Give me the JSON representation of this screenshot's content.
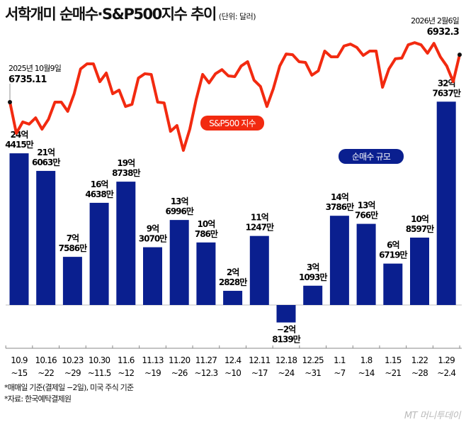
{
  "title": "서학개미 순매수·S&P500지수 추이",
  "unit": "(단위: 달러)",
  "chart_data": [
    {
      "type": "bar",
      "title": "",
      "legend_label": "순매수 규모",
      "color": "#0a1f8f",
      "categories": [
        [
          "10.9",
          "~15"
        ],
        [
          "10.16",
          "~22"
        ],
        [
          "10.23",
          "~29"
        ],
        [
          "10.30",
          "~11.5"
        ],
        [
          "11.6",
          "~12"
        ],
        [
          "11.13",
          "~19"
        ],
        [
          "11.20",
          "~26"
        ],
        [
          "11.27",
          "~12.3"
        ],
        [
          "12.4",
          "~10"
        ],
        [
          "12.11",
          "~17"
        ],
        [
          "12.18",
          "~24"
        ],
        [
          "12.25",
          "~31"
        ],
        [
          "1.1",
          "~7"
        ],
        [
          "1.8",
          "~14"
        ],
        [
          "1.15",
          "~21"
        ],
        [
          "1.22",
          "~28"
        ],
        [
          "1.29",
          "~2.4"
        ]
      ],
      "values_eok": [
        24.4415,
        21.6063,
        7.7586,
        16.4638,
        19.8738,
        9.307,
        13.6996,
        10.0786,
        2.2828,
        11.1247,
        -2.8139,
        3.1093,
        14.3786,
        13.0766,
        6.6719,
        10.8597,
        32.7637
      ],
      "data_labels": [
        [
          "24억",
          "4415만"
        ],
        [
          "21억",
          "6063만"
        ],
        [
          "7억",
          "7586만"
        ],
        [
          "16억",
          "4638만"
        ],
        [
          "19억",
          "8738만"
        ],
        [
          "9억",
          "3070만"
        ],
        [
          "13억",
          "6996만"
        ],
        [
          "10억",
          "786만"
        ],
        [
          "2억",
          "2828만"
        ],
        [
          "11억",
          "1247만"
        ],
        [
          "−2억",
          "8139만"
        ],
        [
          "3억",
          "1093만"
        ],
        [
          "14억",
          "3786만"
        ],
        [
          "13억",
          "766만"
        ],
        [
          "6억",
          "6719만"
        ],
        [
          "10억",
          "8597만"
        ],
        [
          "32억",
          "7637만"
        ]
      ]
    },
    {
      "type": "line",
      "legend_label": "S&P500 지수",
      "color": "#f22a10",
      "start": {
        "date": "2025년 10월9일",
        "value": "6735.11"
      },
      "end": {
        "date": "2026년 2월6일",
        "value": "6932.3"
      },
      "values": [
        6735,
        6606,
        6653,
        6644,
        6670,
        6623,
        6664,
        6735,
        6735,
        6697,
        6770,
        6873,
        6894,
        6894,
        6820,
        6856,
        6770,
        6785,
        6717,
        6726,
        6835,
        6853,
        6850,
        6735,
        6732,
        6614,
        6638,
        6535,
        6623,
        6747,
        6850,
        6815,
        6853,
        6870,
        6844,
        6841,
        6885,
        6903,
        6826,
        6800,
        6717,
        6791,
        6885,
        6935,
        6932,
        6903,
        6900,
        6847,
        6865,
        6947,
        6923,
        6923,
        6968,
        6976,
        6962,
        6929,
        6947,
        6947,
        6797,
        6873,
        6915,
        6918,
        6973,
        6982,
        6973,
        6938,
        6979,
        6923,
        6885,
        6820,
        6932
      ]
    }
  ],
  "notes": [
    "*매매일 기준(결제일 −2일), 미국 주식 기준",
    "*자료: 한국예탁결제원"
  ],
  "logo": "MT 머니투데이"
}
